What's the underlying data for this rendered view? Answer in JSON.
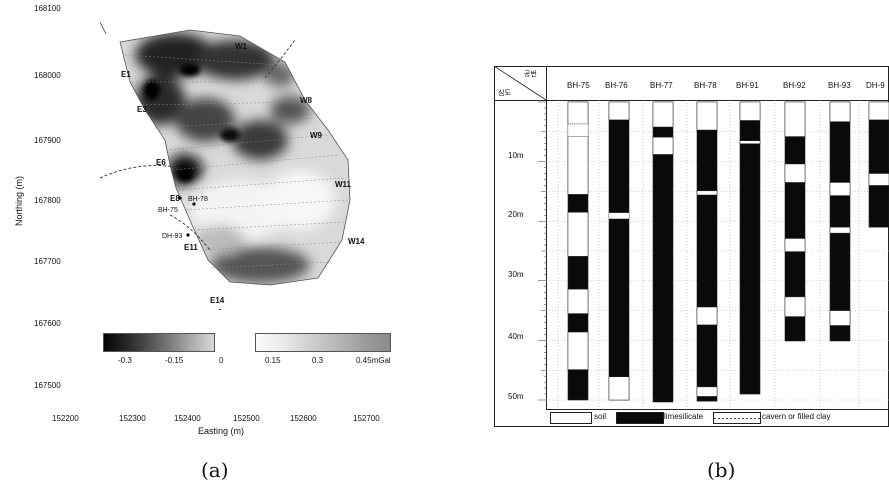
{
  "panel_a": {
    "caption": "(a)",
    "xlabel": "Easting (m)",
    "ylabel": "Northing (m)",
    "x_ticks": [
      "152200",
      "152300",
      "152400",
      "152500",
      "152600",
      "152700"
    ],
    "y_ticks": [
      "168100",
      "168000",
      "167900",
      "167800",
      "167700",
      "167600",
      "167500"
    ],
    "line_labels": [
      "W1",
      "E1",
      "E3",
      "W8",
      "W9",
      "E6",
      "W11",
      "E8",
      "BH-75",
      "BH-78",
      "DH-93",
      "E11",
      "W14",
      "E14"
    ],
    "colorbar_labels": [
      "-0.3",
      "-0.15",
      "0",
      "0.15",
      "0.3",
      "0.45mGal"
    ]
  },
  "panel_b": {
    "caption": "(b)",
    "header_corner_top": "공번",
    "header_corner_bottom": "심도",
    "boreholes": [
      "BH-75",
      "BH-76",
      "BH-77",
      "BH-78",
      "BH-91",
      "BH-92",
      "BH-93",
      "DH-9"
    ],
    "depth_labels": [
      "10m",
      "20m",
      "30m",
      "40m",
      "50m"
    ],
    "legend": {
      "soil": "soil",
      "limesilicate": "limesilicate",
      "cavern": "cavern or filled clay"
    }
  },
  "chart_data": [
    {
      "type": "heatmap",
      "title": "",
      "xlabel": "Easting (m)",
      "ylabel": "Northing (m)",
      "xlim": [
        152200,
        152700
      ],
      "ylim": [
        167500,
        168100
      ],
      "colorbar": {
        "min": -0.3,
        "max": 0.45,
        "unit": "mGal",
        "ticks": [
          -0.3,
          -0.15,
          0,
          0.15,
          0.3,
          0.45
        ]
      },
      "profiles": [
        "W1",
        "E1",
        "E3",
        "W8",
        "W9",
        "E6",
        "W11",
        "E8",
        "E11",
        "W14",
        "E14"
      ],
      "boreholes": [
        "BH-75",
        "BH-78",
        "DH-93"
      ]
    },
    {
      "type": "table",
      "title": "",
      "columns": [
        "BH-75",
        "BH-76",
        "BH-77",
        "BH-78",
        "BH-91",
        "BH-92",
        "BH-93",
        "DH-9"
      ],
      "depth_unit": "m",
      "depth_range": [
        0,
        50
      ],
      "layer_types": [
        "soil",
        "limesilicate",
        "cavern or filled clay"
      ],
      "columns_detail": [
        {
          "name": "BH-75",
          "bottom": 50.0,
          "soil": [
            [
              0,
              3.7
            ],
            [
              5.8,
              15.5
            ],
            [
              18.5,
              25.9
            ],
            [
              31.4,
              35.5
            ],
            [
              38.6,
              44.9
            ]
          ],
          "cavern": [
            [
              3.7,
              5.8
            ]
          ]
        },
        {
          "name": "BH-76",
          "bottom": 50.0,
          "soil": [
            [
              0,
              3.0
            ],
            [
              46.1,
              50
            ]
          ],
          "cavern": [
            [
              18.6,
              19.6
            ]
          ]
        },
        {
          "name": "BH-77",
          "bottom": 50.4,
          "soil": [
            [
              0,
              4.2
            ],
            [
              5.9,
              8.8
            ]
          ],
          "cavern": []
        },
        {
          "name": "BH-78",
          "bottom": 50.2,
          "soil": [
            [
              0,
              4.7
            ],
            [
              14.9,
              15.6
            ],
            [
              34.4,
              37.4
            ],
            [
              47.8,
              49.4
            ]
          ],
          "cavern": []
        },
        {
          "name": "BH-91",
          "bottom": 49.0,
          "soil": [
            [
              0,
              3.1
            ],
            [
              6.5,
              7.0
            ]
          ],
          "cavern": []
        },
        {
          "name": "BH-92",
          "bottom": 40.1,
          "soil": [
            [
              0,
              5.8
            ],
            [
              10.4,
              13.5
            ],
            [
              22.9,
              25.1
            ],
            [
              32.7,
              36.0
            ]
          ],
          "cavern": []
        },
        {
          "name": "BH-93",
          "bottom": 40.1,
          "soil": [
            [
              0,
              3.3
            ],
            [
              13.5,
              15.7
            ],
            [
              21.0,
              22.0
            ],
            [
              35.0,
              37.5
            ]
          ],
          "cavern": []
        },
        {
          "name": "DH-9",
          "bottom": 21.0,
          "soil": [
            [
              0,
              3.0
            ],
            [
              12.0,
              14.0
            ]
          ],
          "cavern": []
        }
      ]
    }
  ]
}
